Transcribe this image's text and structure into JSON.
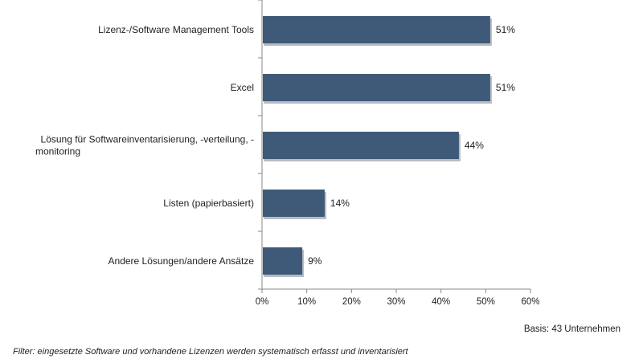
{
  "chart_data": {
    "type": "bar",
    "orientation": "horizontal",
    "categories": [
      "Lizenz-/Software Management Tools",
      "Excel",
      "Lösung für Softwareinventarisierung, -verteilung, - monitoring",
      "Listen (papierbasiert)",
      "Andere Lösungen/andere Ansätze"
    ],
    "category_lines": [
      [
        "Lizenz-/Software Management Tools"
      ],
      [
        "Excel"
      ],
      [
        "Lösung für Softwareinventarisierung, -verteilung, -",
        "monitoring"
      ],
      [
        "Listen (papierbasiert)"
      ],
      [
        "Andere Lösungen/andere Ansätze"
      ]
    ],
    "values": [
      51,
      51,
      44,
      14,
      9
    ],
    "value_labels": [
      "51%",
      "51%",
      "44%",
      "14%",
      "9%"
    ],
    "xlim": [
      0,
      60
    ],
    "ticks": [
      0,
      10,
      20,
      30,
      40,
      50,
      60
    ],
    "tick_labels": [
      "0%",
      "10%",
      "20%",
      "30%",
      "40%",
      "50%",
      "60%"
    ],
    "grid": false,
    "bar_color": "#3f5a78",
    "bar_shadow_color": "#b8bcc2",
    "axis_color": "#888888"
  },
  "footer": {
    "basis": "Basis: 43 Unternehmen",
    "filter": "Filter: eingesetzte Software und vorhandene Lizenzen werden systematisch erfasst und inventarisiert"
  }
}
